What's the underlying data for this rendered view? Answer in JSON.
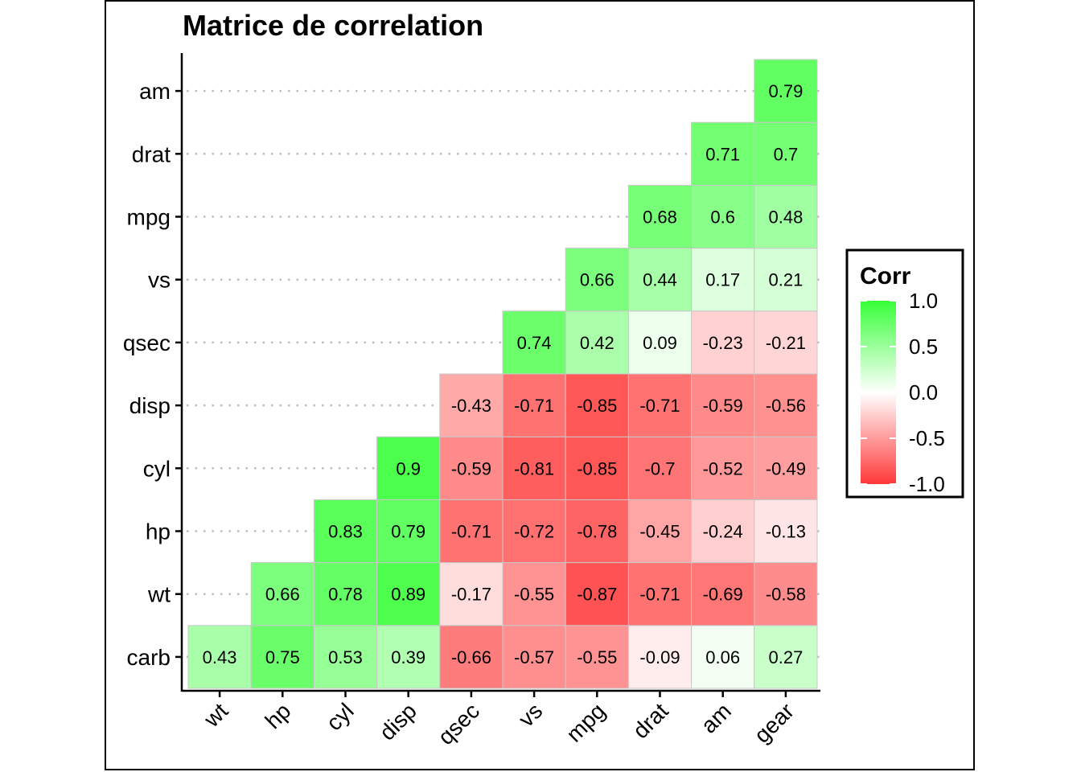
{
  "chart_data": {
    "type": "heatmap",
    "title": "Matrice de correlation",
    "x_categories": [
      "wt",
      "hp",
      "cyl",
      "disp",
      "qsec",
      "vs",
      "mpg",
      "drat",
      "am",
      "gear"
    ],
    "y_categories": [
      "carb",
      "wt",
      "hp",
      "cyl",
      "disp",
      "qsec",
      "vs",
      "mpg",
      "drat",
      "am"
    ],
    "values": [
      [
        0.43,
        0.75,
        0.53,
        0.39,
        -0.66,
        -0.57,
        -0.55,
        -0.09,
        0.06,
        0.27
      ],
      [
        null,
        0.66,
        0.78,
        0.89,
        -0.17,
        -0.55,
        -0.87,
        -0.71,
        -0.69,
        -0.58
      ],
      [
        null,
        null,
        0.83,
        0.79,
        -0.71,
        -0.72,
        -0.78,
        -0.45,
        -0.24,
        -0.13
      ],
      [
        null,
        null,
        null,
        0.9,
        -0.59,
        -0.81,
        -0.85,
        -0.7,
        -0.52,
        -0.49
      ],
      [
        null,
        null,
        null,
        null,
        -0.43,
        -0.71,
        -0.85,
        -0.71,
        -0.59,
        -0.56
      ],
      [
        null,
        null,
        null,
        null,
        null,
        0.74,
        0.42,
        0.09,
        -0.23,
        -0.21
      ],
      [
        null,
        null,
        null,
        null,
        null,
        null,
        0.66,
        0.44,
        0.17,
        0.21
      ],
      [
        null,
        null,
        null,
        null,
        null,
        null,
        null,
        0.68,
        0.6,
        0.48
      ],
      [
        null,
        null,
        null,
        null,
        null,
        null,
        null,
        null,
        0.71,
        0.7
      ],
      [
        null,
        null,
        null,
        null,
        null,
        null,
        null,
        null,
        null,
        0.79
      ]
    ],
    "value_range": [
      -1,
      1
    ],
    "colors": {
      "low": "#FF0000",
      "mid": "#FFFFFF",
      "high": "#00FF00"
    },
    "legend": {
      "title": "Corr",
      "ticks": [
        "1.0",
        "0.5",
        "0.0",
        "-0.5",
        "-1.0"
      ],
      "tick_values": [
        1.0,
        0.5,
        0.0,
        -0.5,
        -1.0
      ],
      "position": "right"
    },
    "grid": "dotted horizontal"
  }
}
